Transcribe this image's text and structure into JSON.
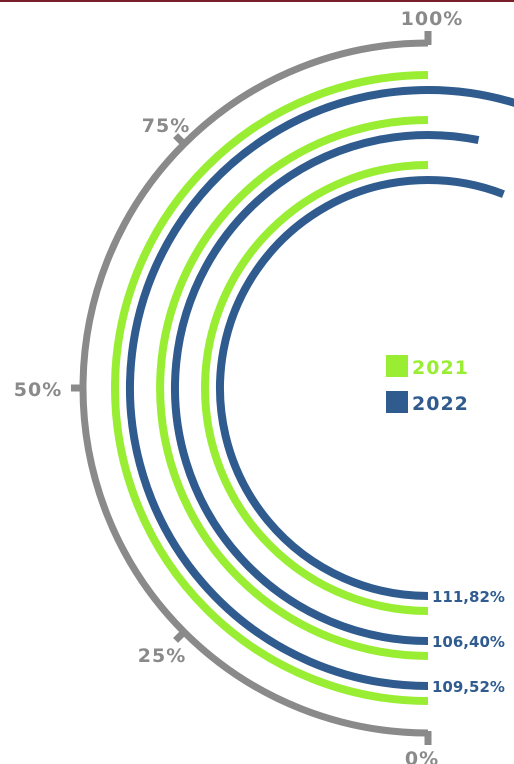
{
  "chart_data": {
    "type": "radial_bar",
    "title": "",
    "series": [
      {
        "name": "2021",
        "color": "#99ee33"
      },
      {
        "name": "2022",
        "color": "#2f5b8e"
      }
    ],
    "rings": [
      {
        "year_2021_pct": 100,
        "year_2022_pct": 109.52,
        "label": "109,52%"
      },
      {
        "year_2021_pct": 100,
        "year_2022_pct": 106.4,
        "label": "106,40%"
      },
      {
        "year_2021_pct": 100,
        "year_2022_pct": 111.82,
        "label": "111,82%"
      }
    ],
    "axis": {
      "ticks": [
        "0%",
        "25%",
        "50%",
        "75%",
        "100%"
      ],
      "range": [
        0,
        100
      ],
      "color": "#8a8a8a"
    },
    "legend_position": "center-right"
  }
}
